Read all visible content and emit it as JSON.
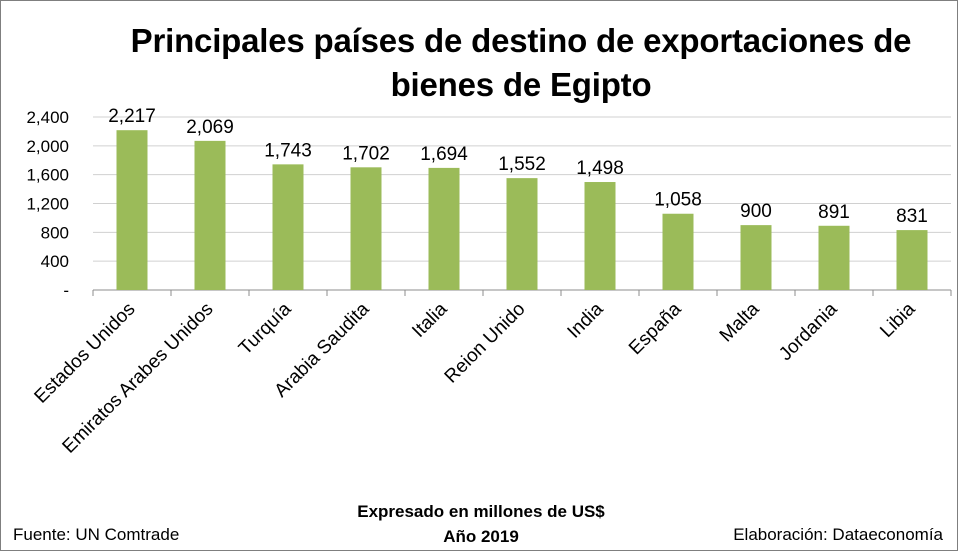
{
  "chart_data": {
    "type": "bar",
    "title": "Principales países de destino de exportaciones de bienes de Egipto",
    "categories": [
      "Estados Unidos",
      "Emiratos Arabes Unidos",
      "Turquía",
      "Arabia Saudita",
      "Italia",
      "Reion Unido",
      "India",
      "España",
      "Malta",
      "Jordania",
      "Libia"
    ],
    "values": [
      2217,
      2069,
      1743,
      1702,
      1694,
      1552,
      1498,
      1058,
      900,
      891,
      831
    ],
    "data_labels": [
      "2,217",
      "2,069",
      "1,743",
      "1,702",
      "1,694",
      "1,552",
      "1,498",
      "1,058",
      "900",
      "891",
      "831"
    ],
    "y_ticks": [
      "-",
      "400",
      "800",
      "1,200",
      "1,600",
      "2,000",
      "2,400"
    ],
    "ylim": [
      0,
      2400
    ],
    "grid": true,
    "bar_color": "#9bbb59"
  },
  "footer": {
    "source": "Fuente: UN Comtrade",
    "unit_note": "Expresado en millones de US$",
    "year": "Año 2019",
    "credit": "Elaboración: Dataeconomía"
  }
}
